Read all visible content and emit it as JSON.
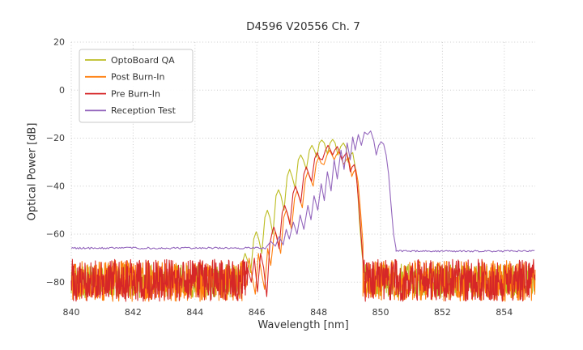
{
  "chart_data": {
    "type": "line",
    "title": "D4596 V20556 Ch. 7",
    "xlabel": "Wavelength [nm]",
    "ylabel": "Optical Power [dB]",
    "xlim": [
      840,
      855
    ],
    "ylim": [
      -88,
      20
    ],
    "grid": true,
    "legend_position": "upper left",
    "xticks": {
      "values": [
        840,
        842,
        844,
        846,
        848,
        850,
        852,
        854
      ],
      "labels": [
        "840",
        "842",
        "844",
        "846",
        "848",
        "850",
        "852",
        "854"
      ]
    },
    "yticks": {
      "values": [
        20,
        0,
        -20,
        -40,
        -60,
        -80
      ],
      "labels": [
        "20",
        "0",
        "−20",
        "−40",
        "−60",
        "−80"
      ]
    },
    "series": [
      {
        "name": "OptoBoard QA",
        "color": "#bcbd22",
        "segments": [
          {
            "type": "noise",
            "x0": 840.0,
            "x1": 845.45,
            "step": 0.012,
            "lo": -86.5,
            "hi": -72.5,
            "seed": 101
          },
          {
            "type": "points",
            "x": [
              845.45,
              845.55,
              845.62,
              845.7,
              845.8,
              845.9,
              845.98,
              846.06,
              846.16,
              846.26,
              846.34,
              846.42,
              846.52,
              846.62,
              846.7,
              846.78,
              846.88,
              846.98,
              847.06,
              847.14,
              847.24,
              847.34,
              847.42,
              847.5,
              847.6,
              847.7,
              847.78,
              847.86,
              847.94,
              848.02,
              848.1,
              848.18,
              848.28,
              848.37,
              848.45,
              848.53,
              848.62,
              848.71,
              848.8,
              848.88,
              848.95,
              849.02,
              849.1,
              849.18,
              849.25,
              849.32,
              849.4,
              849.48
            ],
            "y": [
              -77,
              -71,
              -68,
              -71,
              -76,
              -62,
              -59,
              -62,
              -68,
              -53,
              -50,
              -53,
              -60,
              -44,
              -41.5,
              -44,
              -50,
              -36,
              -33,
              -36,
              -41,
              -29,
              -27,
              -29,
              -33,
              -25,
              -23,
              -25,
              -28,
              -22,
              -20.8,
              -22,
              -26.5,
              -22,
              -20.5,
              -22,
              -27,
              -23.5,
              -22,
              -24,
              -30,
              -27,
              -26,
              -32,
              -40,
              -55,
              -68,
              -77
            ]
          },
          {
            "type": "noise",
            "x0": 849.48,
            "x1": 855.0,
            "step": 0.012,
            "lo": -86.5,
            "hi": -72.5,
            "seed": 102
          }
        ]
      },
      {
        "name": "Post Burn-In",
        "color": "#ff7f0e",
        "segments": [
          {
            "type": "noise",
            "x0": 840.0,
            "x1": 845.55,
            "step": 0.012,
            "lo": -88,
            "hi": -71,
            "seed": 201
          },
          {
            "type": "points",
            "x": [
              845.55,
              845.65,
              845.75,
              845.85,
              845.95,
              846.05,
              846.15,
              846.25,
              846.35,
              846.45,
              846.55,
              846.6,
              846.67,
              846.77,
              846.87,
              846.95,
              847.03,
              847.12,
              847.22,
              847.3,
              847.38,
              847.47,
              847.57,
              847.65,
              847.73,
              847.82,
              847.92,
              848.0,
              848.08,
              848.17,
              848.27,
              848.35,
              848.43,
              848.5,
              848.57,
              848.65,
              848.73,
              848.8,
              848.87,
              848.95,
              849.01,
              849.07,
              849.13,
              849.2,
              849.27,
              849.35,
              849.43
            ],
            "y": [
              -76,
              -82,
              -70,
              -78,
              -85,
              -68,
              -76,
              -83,
              -66,
              -73,
              -61,
              -59,
              -62,
              -68,
              -53,
              -50,
              -53,
              -58,
              -45,
              -42,
              -45,
              -49,
              -37,
              -34,
              -37,
              -40,
              -30.5,
              -28,
              -30.5,
              -31,
              -27,
              -25,
              -27,
              -29,
              -27,
              -25.5,
              -28,
              -31,
              -29.5,
              -28,
              -31,
              -36,
              -34,
              -33,
              -38,
              -50,
              -64
            ]
          },
          {
            "type": "noise",
            "x0": 849.43,
            "x1": 855.0,
            "step": 0.012,
            "lo": -88,
            "hi": -71,
            "seed": 202
          }
        ]
      },
      {
        "name": "Pre Burn-In",
        "color": "#d62728",
        "segments": [
          {
            "type": "noise",
            "x0": 840.0,
            "x1": 845.7,
            "step": 0.012,
            "lo": -88,
            "hi": -70.5,
            "seed": 301
          },
          {
            "type": "points",
            "x": [
              845.7,
              845.82,
              845.92,
              846.02,
              846.12,
              846.22,
              846.32,
              846.42,
              846.5,
              846.55,
              846.62,
              846.72,
              846.82,
              846.9,
              846.98,
              847.07,
              847.17,
              847.25,
              847.33,
              847.42,
              847.52,
              847.6,
              847.68,
              847.77,
              847.87,
              847.95,
              848.03,
              848.12,
              848.22,
              848.3,
              848.38,
              848.45,
              848.52,
              848.6,
              848.68,
              848.75,
              848.82,
              848.9,
              848.96,
              849.02,
              849.08,
              849.15,
              849.22,
              849.3,
              849.38,
              849.46
            ],
            "y": [
              -74,
              -80,
              -70,
              -84,
              -68,
              -74,
              -86,
              -64,
              -59,
              -57,
              -60,
              -66,
              -51,
              -48,
              -51,
              -56,
              -43,
              -40,
              -43,
              -47,
              -35,
              -32,
              -35,
              -38,
              -28.5,
              -26,
              -28.5,
              -29,
              -25,
              -23,
              -25,
              -27,
              -25,
              -23.5,
              -26,
              -29,
              -27.5,
              -26,
              -29,
              -34,
              -32,
              -31,
              -36,
              -48,
              -62,
              -76
            ]
          },
          {
            "type": "noise",
            "x0": 849.46,
            "x1": 855.0,
            "step": 0.012,
            "lo": -88,
            "hi": -70.5,
            "seed": 302
          }
        ]
      },
      {
        "name": "Reception Test",
        "color": "#9467bd",
        "segments": [
          {
            "type": "noise",
            "x0": 840.0,
            "x1": 846.3,
            "step": 0.04,
            "lo": -66.2,
            "hi": -65.4,
            "seed": 401
          },
          {
            "type": "points",
            "x": [
              846.3,
              846.45,
              846.6,
              846.72,
              846.85,
              846.95,
              847.05,
              847.18,
              847.3,
              847.4,
              847.52,
              847.65,
              847.75,
              847.85,
              847.97,
              848.08,
              848.18,
              848.28,
              848.4,
              848.5,
              848.6,
              848.72,
              848.82,
              848.92,
              849.02,
              849.1,
              849.18,
              849.28,
              849.38,
              849.48,
              849.58,
              849.68,
              849.78,
              849.86,
              849.94,
              850.02,
              850.1,
              850.18,
              850.26,
              850.34,
              850.42,
              850.5
            ],
            "y": [
              -65.5,
              -63,
              -65,
              -61,
              -64.5,
              -58,
              -62,
              -55,
              -60,
              -52,
              -58,
              -48,
              -54,
              -44,
              -50,
              -39,
              -46,
              -34,
              -42,
              -29,
              -37,
              -25,
              -33,
              -22,
              -29,
              -19.5,
              -25,
              -18.5,
              -23,
              -17.5,
              -18.5,
              -17,
              -21,
              -27,
              -23,
              -21.5,
              -22.5,
              -27,
              -35,
              -48,
              -60,
              -66
            ]
          },
          {
            "type": "noise",
            "x0": 850.5,
            "x1": 855.0,
            "step": 0.04,
            "lo": -67.4,
            "hi": -66.7,
            "seed": 402
          }
        ]
      }
    ]
  }
}
